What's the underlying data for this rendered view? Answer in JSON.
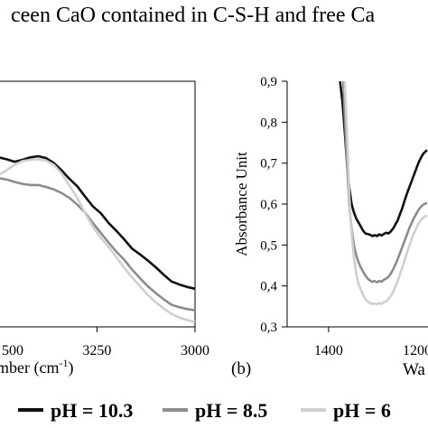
{
  "caption_fragment": "ceen CaO contained in C-S-H and free Ca",
  "panel_b_label": "(b)",
  "legend": [
    {
      "label": "pH = 10.3",
      "color": "#111111"
    },
    {
      "label": "pH = 8.5",
      "color": "#8c8c8c"
    },
    {
      "label": "pH = 6",
      "color": "#cfcfcf"
    }
  ],
  "chart_data": [
    {
      "type": "line",
      "panel": "a",
      "xlabel_main": "mber (cm",
      "xlabel_sup": "-1",
      "xlabel_close": ")",
      "xlim": [
        3000,
        3520
      ],
      "x_reversed": true,
      "x_ticks": [
        3250,
        3000
      ],
      "x_tick_partial": "500",
      "grid": false,
      "series": [
        {
          "name": "pH = 10.3",
          "color": "#111111",
          "x": [
            3520,
            3500,
            3480,
            3460,
            3440,
            3420,
            3400,
            3380,
            3360,
            3340,
            3320,
            3300,
            3280,
            3260,
            3240,
            3220,
            3200,
            3180,
            3160,
            3140,
            3120,
            3100,
            3080,
            3060,
            3040,
            3020,
            3000
          ],
          "y": [
            0.675,
            0.676,
            0.673,
            0.669,
            0.672,
            0.676,
            0.678,
            0.675,
            0.667,
            0.655,
            0.641,
            0.629,
            0.612,
            0.596,
            0.585,
            0.569,
            0.556,
            0.542,
            0.527,
            0.518,
            0.508,
            0.497,
            0.485,
            0.474,
            0.469,
            0.465,
            0.462
          ]
        },
        {
          "name": "pH = 8.5",
          "color": "#8c8c8c",
          "x": [
            3520,
            3500,
            3480,
            3460,
            3440,
            3420,
            3400,
            3380,
            3360,
            3340,
            3320,
            3300,
            3280,
            3260,
            3240,
            3220,
            3200,
            3180,
            3160,
            3140,
            3120,
            3100,
            3080,
            3060,
            3040,
            3020,
            3000
          ],
          "y": [
            0.638,
            0.642,
            0.64,
            0.636,
            0.633,
            0.631,
            0.631,
            0.628,
            0.624,
            0.618,
            0.61,
            0.599,
            0.586,
            0.569,
            0.553,
            0.537,
            0.522,
            0.509,
            0.493,
            0.479,
            0.466,
            0.455,
            0.445,
            0.436,
            0.432,
            0.429,
            0.427
          ]
        },
        {
          "name": "pH = 6",
          "color": "#cfcfcf",
          "x": [
            3520,
            3500,
            3480,
            3460,
            3440,
            3420,
            3400,
            3380,
            3360,
            3340,
            3320,
            3300,
            3280,
            3260,
            3240,
            3220,
            3200,
            3180,
            3160,
            3140,
            3120,
            3100,
            3080,
            3060,
            3040,
            3020,
            3000
          ],
          "y": [
            0.643,
            0.648,
            0.655,
            0.664,
            0.67,
            0.672,
            0.673,
            0.671,
            0.664,
            0.65,
            0.63,
            0.61,
            0.585,
            0.563,
            0.545,
            0.53,
            0.513,
            0.496,
            0.48,
            0.466,
            0.452,
            0.44,
            0.43,
            0.421,
            0.415,
            0.411,
            0.408
          ]
        }
      ]
    },
    {
      "type": "line",
      "panel": "b",
      "ylabel": "Absorbance Unit",
      "xlabel": "Wa",
      "ylim": [
        0.3,
        0.9
      ],
      "y_ticks": [
        0.3,
        0.4,
        0.5,
        0.6,
        0.7,
        0.8,
        0.9
      ],
      "y_tick_labels": [
        "0,3",
        "0,4",
        "0,5",
        "0,6",
        "0,7",
        "0,8",
        "0,9"
      ],
      "xlim": [
        1185,
        1490
      ],
      "x_reversed": true,
      "x_ticks": [
        1400
      ],
      "x_tick_partial": "1200",
      "grid": false,
      "series": [
        {
          "name": "pH = 10.3",
          "color": "#111111",
          "x": [
            1375,
            1370,
            1365,
            1360,
            1355,
            1350,
            1345,
            1340,
            1335,
            1330,
            1325,
            1320,
            1315,
            1310,
            1305,
            1300,
            1295,
            1290,
            1285,
            1280,
            1275,
            1270,
            1265,
            1260,
            1255,
            1250,
            1245,
            1240,
            1235,
            1230,
            1225,
            1220,
            1215,
            1210,
            1205,
            1200,
            1195,
            1190,
            1186
          ],
          "y": [
            0.9,
            0.85,
            0.78,
            0.7,
            0.64,
            0.6,
            0.58,
            0.565,
            0.555,
            0.545,
            0.535,
            0.528,
            0.527,
            0.525,
            0.522,
            0.524,
            0.522,
            0.526,
            0.523,
            0.527,
            0.53,
            0.528,
            0.533,
            0.54,
            0.55,
            0.56,
            0.575,
            0.59,
            0.608,
            0.625,
            0.64,
            0.655,
            0.67,
            0.685,
            0.7,
            0.712,
            0.722,
            0.728,
            0.732
          ]
        },
        {
          "name": "pH = 8.5",
          "color": "#8c8c8c",
          "x": [
            1368,
            1365,
            1360,
            1355,
            1350,
            1345,
            1340,
            1335,
            1330,
            1325,
            1320,
            1315,
            1310,
            1305,
            1300,
            1295,
            1290,
            1285,
            1280,
            1275,
            1270,
            1265,
            1260,
            1255,
            1250,
            1245,
            1240,
            1235,
            1230,
            1225,
            1220,
            1215,
            1210,
            1205,
            1200,
            1195,
            1190,
            1186
          ],
          "y": [
            0.9,
            0.82,
            0.7,
            0.6,
            0.54,
            0.5,
            0.475,
            0.458,
            0.445,
            0.435,
            0.425,
            0.418,
            0.413,
            0.41,
            0.412,
            0.409,
            0.412,
            0.41,
            0.415,
            0.418,
            0.422,
            0.43,
            0.44,
            0.452,
            0.465,
            0.48,
            0.495,
            0.51,
            0.525,
            0.54,
            0.553,
            0.565,
            0.575,
            0.585,
            0.593,
            0.598,
            0.601,
            0.603
          ]
        },
        {
          "name": "pH = 6",
          "color": "#cfcfcf",
          "x": [
            1365,
            1360,
            1355,
            1350,
            1345,
            1340,
            1335,
            1330,
            1325,
            1320,
            1315,
            1310,
            1305,
            1300,
            1295,
            1290,
            1285,
            1280,
            1275,
            1270,
            1265,
            1260,
            1255,
            1250,
            1245,
            1240,
            1235,
            1230,
            1225,
            1220,
            1215,
            1210,
            1205,
            1200,
            1195,
            1190,
            1186
          ],
          "y": [
            0.9,
            0.78,
            0.62,
            0.53,
            0.47,
            0.43,
            0.405,
            0.39,
            0.378,
            0.368,
            0.362,
            0.358,
            0.356,
            0.357,
            0.355,
            0.358,
            0.356,
            0.36,
            0.362,
            0.368,
            0.375,
            0.385,
            0.398,
            0.412,
            0.428,
            0.445,
            0.462,
            0.48,
            0.497,
            0.513,
            0.528,
            0.54,
            0.552,
            0.56,
            0.566,
            0.57,
            0.572
          ]
        }
      ]
    }
  ]
}
